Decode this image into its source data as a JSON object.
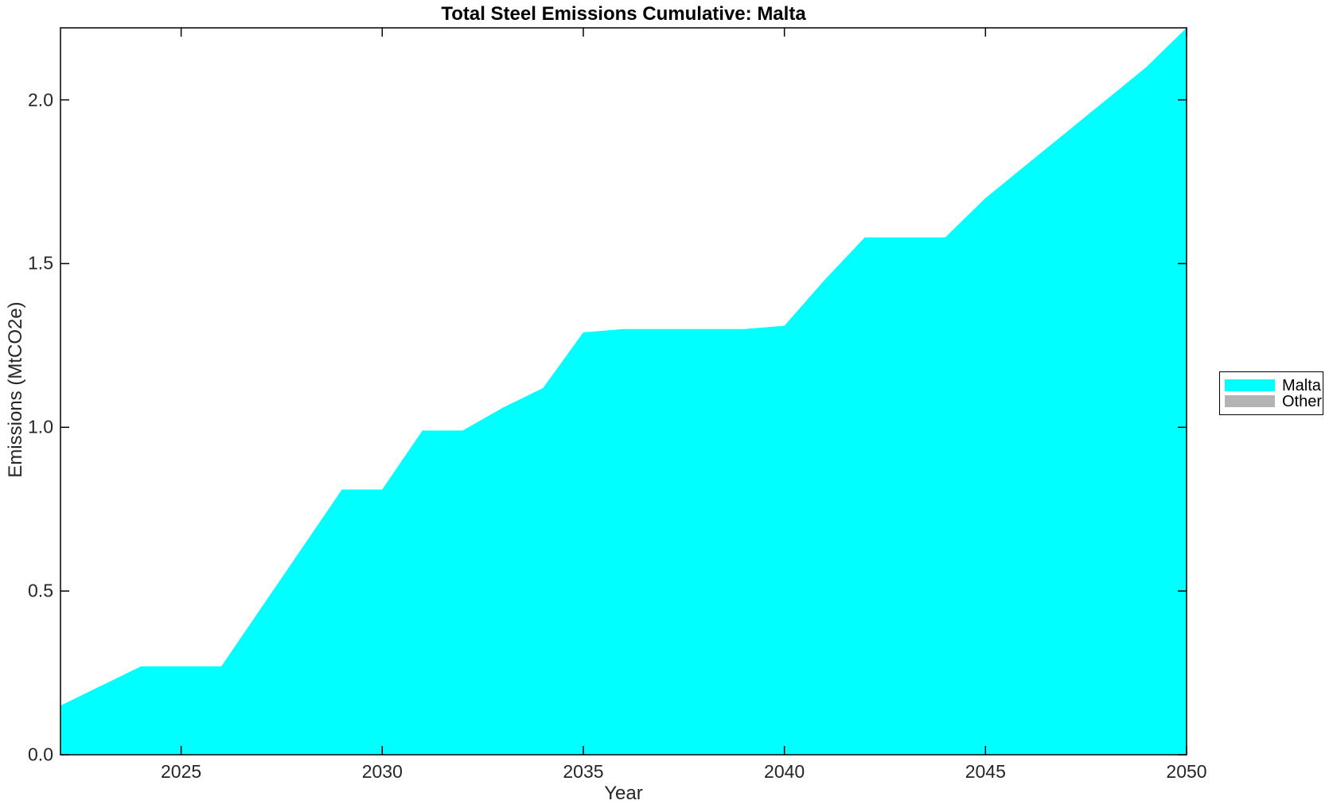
{
  "chart_data": {
    "type": "area",
    "title": "Total Steel Emissions Cumulative: Malta",
    "xlabel": "Year",
    "ylabel": "Emissions (MtCO2e)",
    "x": [
      2022,
      2023,
      2024,
      2025,
      2026,
      2027,
      2028,
      2029,
      2030,
      2031,
      2032,
      2033,
      2034,
      2035,
      2036,
      2037,
      2038,
      2039,
      2040,
      2041,
      2042,
      2043,
      2044,
      2045,
      2046,
      2047,
      2048,
      2049,
      2050
    ],
    "series": [
      {
        "name": "Malta",
        "color": "#00FFFF",
        "values": [
          0.15,
          0.21,
          0.27,
          0.27,
          0.27,
          0.45,
          0.63,
          0.81,
          0.81,
          0.99,
          0.99,
          1.06,
          1.12,
          1.29,
          1.3,
          1.3,
          1.3,
          1.3,
          1.31,
          1.45,
          1.58,
          1.58,
          1.58,
          1.7,
          1.8,
          1.9,
          2.0,
          2.1,
          2.22
        ]
      },
      {
        "name": "Other",
        "color": "#B3B3B3",
        "values": [
          0,
          0,
          0,
          0,
          0,
          0,
          0,
          0,
          0,
          0,
          0,
          0,
          0,
          0,
          0,
          0,
          0,
          0,
          0,
          0,
          0,
          0,
          0,
          0,
          0,
          0,
          0,
          0,
          0
        ]
      }
    ],
    "xlim": [
      2022,
      2050
    ],
    "ylim": [
      0,
      2.22
    ],
    "x_ticks": [
      2025,
      2030,
      2035,
      2040,
      2045,
      2050
    ],
    "y_ticks": [
      0,
      0.5,
      1.0,
      1.5,
      2.0
    ],
    "y_tick_labels": [
      "0.0",
      "0.5",
      "1.0",
      "1.5",
      "2.0"
    ],
    "grid": false,
    "legend_position": "right-outside"
  },
  "colors": {
    "area_malta": "#00FFFF",
    "area_other": "#B3B3B3",
    "axis": "#000000",
    "tick_text": "#262626",
    "background": "#FFFFFF"
  }
}
